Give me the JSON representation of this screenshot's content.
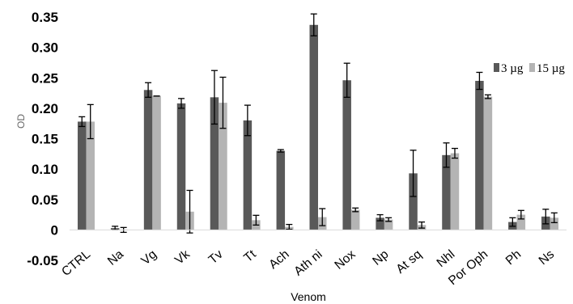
{
  "chart_data": {
    "type": "bar",
    "title": "",
    "xlabel": "Venom",
    "ylabel": "OD",
    "ylim": [
      -0.05,
      0.35
    ],
    "yticks": [
      -0.05,
      0,
      0.05,
      0.1,
      0.15,
      0.2,
      0.25,
      0.3,
      0.35
    ],
    "ytick_labels": [
      "-0.05",
      "0",
      "0.05",
      "0.10",
      "0.15",
      "0.20",
      "0.25",
      "0.30",
      "0.35"
    ],
    "grid": false,
    "legend_position": "top-right",
    "categories": [
      "CTRL",
      "Na",
      "Vg",
      "Vk",
      "Tv",
      "Tt",
      "Ach",
      "Ath ni",
      "Nox",
      "Np",
      "At sq",
      "Nhl",
      "Por Oph",
      "Ph",
      "Ns"
    ],
    "series": [
      {
        "name": "3 µg",
        "color": "#595959",
        "values": [
          0.178,
          0.003,
          0.23,
          0.208,
          0.218,
          0.18,
          0.13,
          0.337,
          0.246,
          0.02,
          0.093,
          0.123,
          0.245,
          0.013,
          0.022
        ],
        "errors": [
          0.008,
          0.003,
          0.012,
          0.008,
          0.044,
          0.025,
          0.002,
          0.018,
          0.028,
          0.005,
          0.038,
          0.02,
          0.014,
          0.007,
          0.012
        ]
      },
      {
        "name": "15 µg",
        "color": "#b4b4b4",
        "values": [
          0.178,
          0.0,
          0.22,
          0.03,
          0.209,
          0.016,
          0.005,
          0.021,
          0.033,
          0.017,
          0.008,
          0.126,
          0.219,
          0.025,
          0.02
        ],
        "errors": [
          0.028,
          0.004,
          0.0,
          0.035,
          0.042,
          0.008,
          0.004,
          0.014,
          0.003,
          0.003,
          0.005,
          0.008,
          0.003,
          0.007,
          0.008
        ]
      }
    ]
  }
}
